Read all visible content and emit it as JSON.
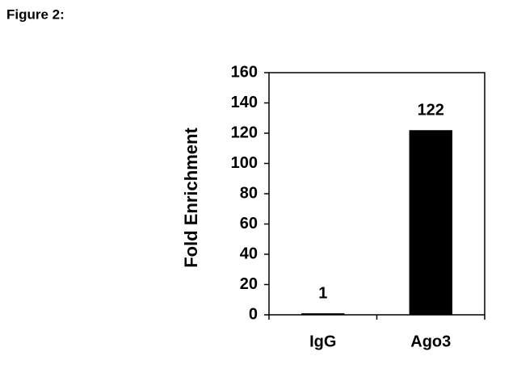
{
  "chart_data": {
    "type": "bar",
    "title": "Figure 2:",
    "y_label": "Fold Enrichment",
    "categories": [
      "IgG",
      "Ago3"
    ],
    "values": [
      1,
      122
    ],
    "color": "#000000",
    "ylim": [
      0,
      160
    ],
    "yticks": [
      0,
      20,
      40,
      60,
      80,
      100,
      120,
      140,
      160
    ]
  }
}
